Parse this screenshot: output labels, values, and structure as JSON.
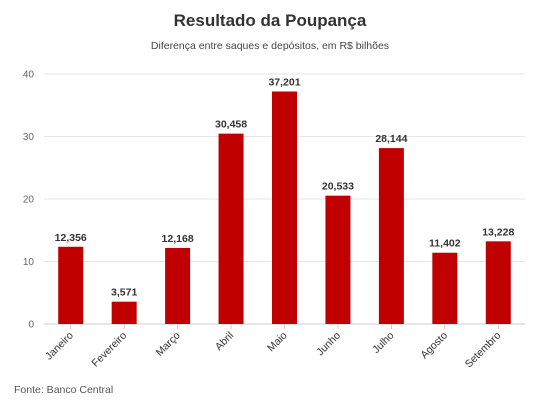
{
  "title": "Resultado da Poupança",
  "subtitle": "Diferença entre saques e depósitos, em R$ bilhões",
  "source": "Fonte: Banco Central",
  "colors": {
    "bar": "#c00000",
    "grid": "#e6e6e6",
    "axis": "#cccccc"
  },
  "chart_data": {
    "type": "bar",
    "title": "Resultado da Poupança",
    "subtitle": "Diferença entre saques e depósitos, em R$ bilhões",
    "categories": [
      "Janeiro",
      "Fevereiro",
      "Março",
      "Abril",
      "Maio",
      "Junho",
      "Julho",
      "Agosto",
      "Setembro"
    ],
    "values": [
      12.356,
      3.571,
      12.168,
      30.458,
      37.201,
      20.533,
      28.144,
      11.402,
      13.228
    ],
    "data_labels": [
      "12,356",
      "3,571",
      "12,168",
      "30,458",
      "37,201",
      "20,533",
      "28,144",
      "11,402",
      "13,228"
    ],
    "ylim": [
      0,
      40
    ],
    "yticks": [
      0,
      10,
      20,
      30,
      40
    ],
    "grid": true,
    "legend": "none"
  }
}
